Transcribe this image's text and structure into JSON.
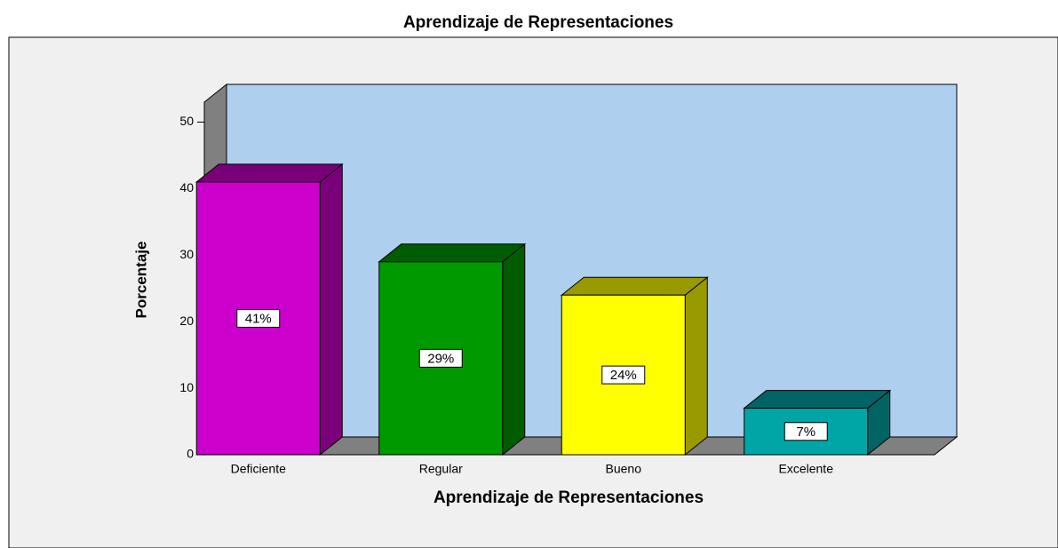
{
  "chart_data": {
    "type": "bar3d",
    "title": "Aprendizaje de Representaciones",
    "x_label": "Aprendizaje de Representaciones",
    "y_label": "Porcentaje",
    "categories": [
      "Deficiente",
      "Regular",
      "Bueno",
      "Excelente"
    ],
    "values": [
      41,
      29,
      24,
      7
    ],
    "value_labels": [
      "41%",
      "29%",
      "24%",
      "7%"
    ],
    "colors": [
      "#cc00cc",
      "#009900",
      "#ffff00",
      "#00a6a6"
    ],
    "ylim": [
      0,
      53
    ],
    "yticks": [
      0,
      10,
      20,
      30,
      40,
      50
    ],
    "grid": false
  }
}
